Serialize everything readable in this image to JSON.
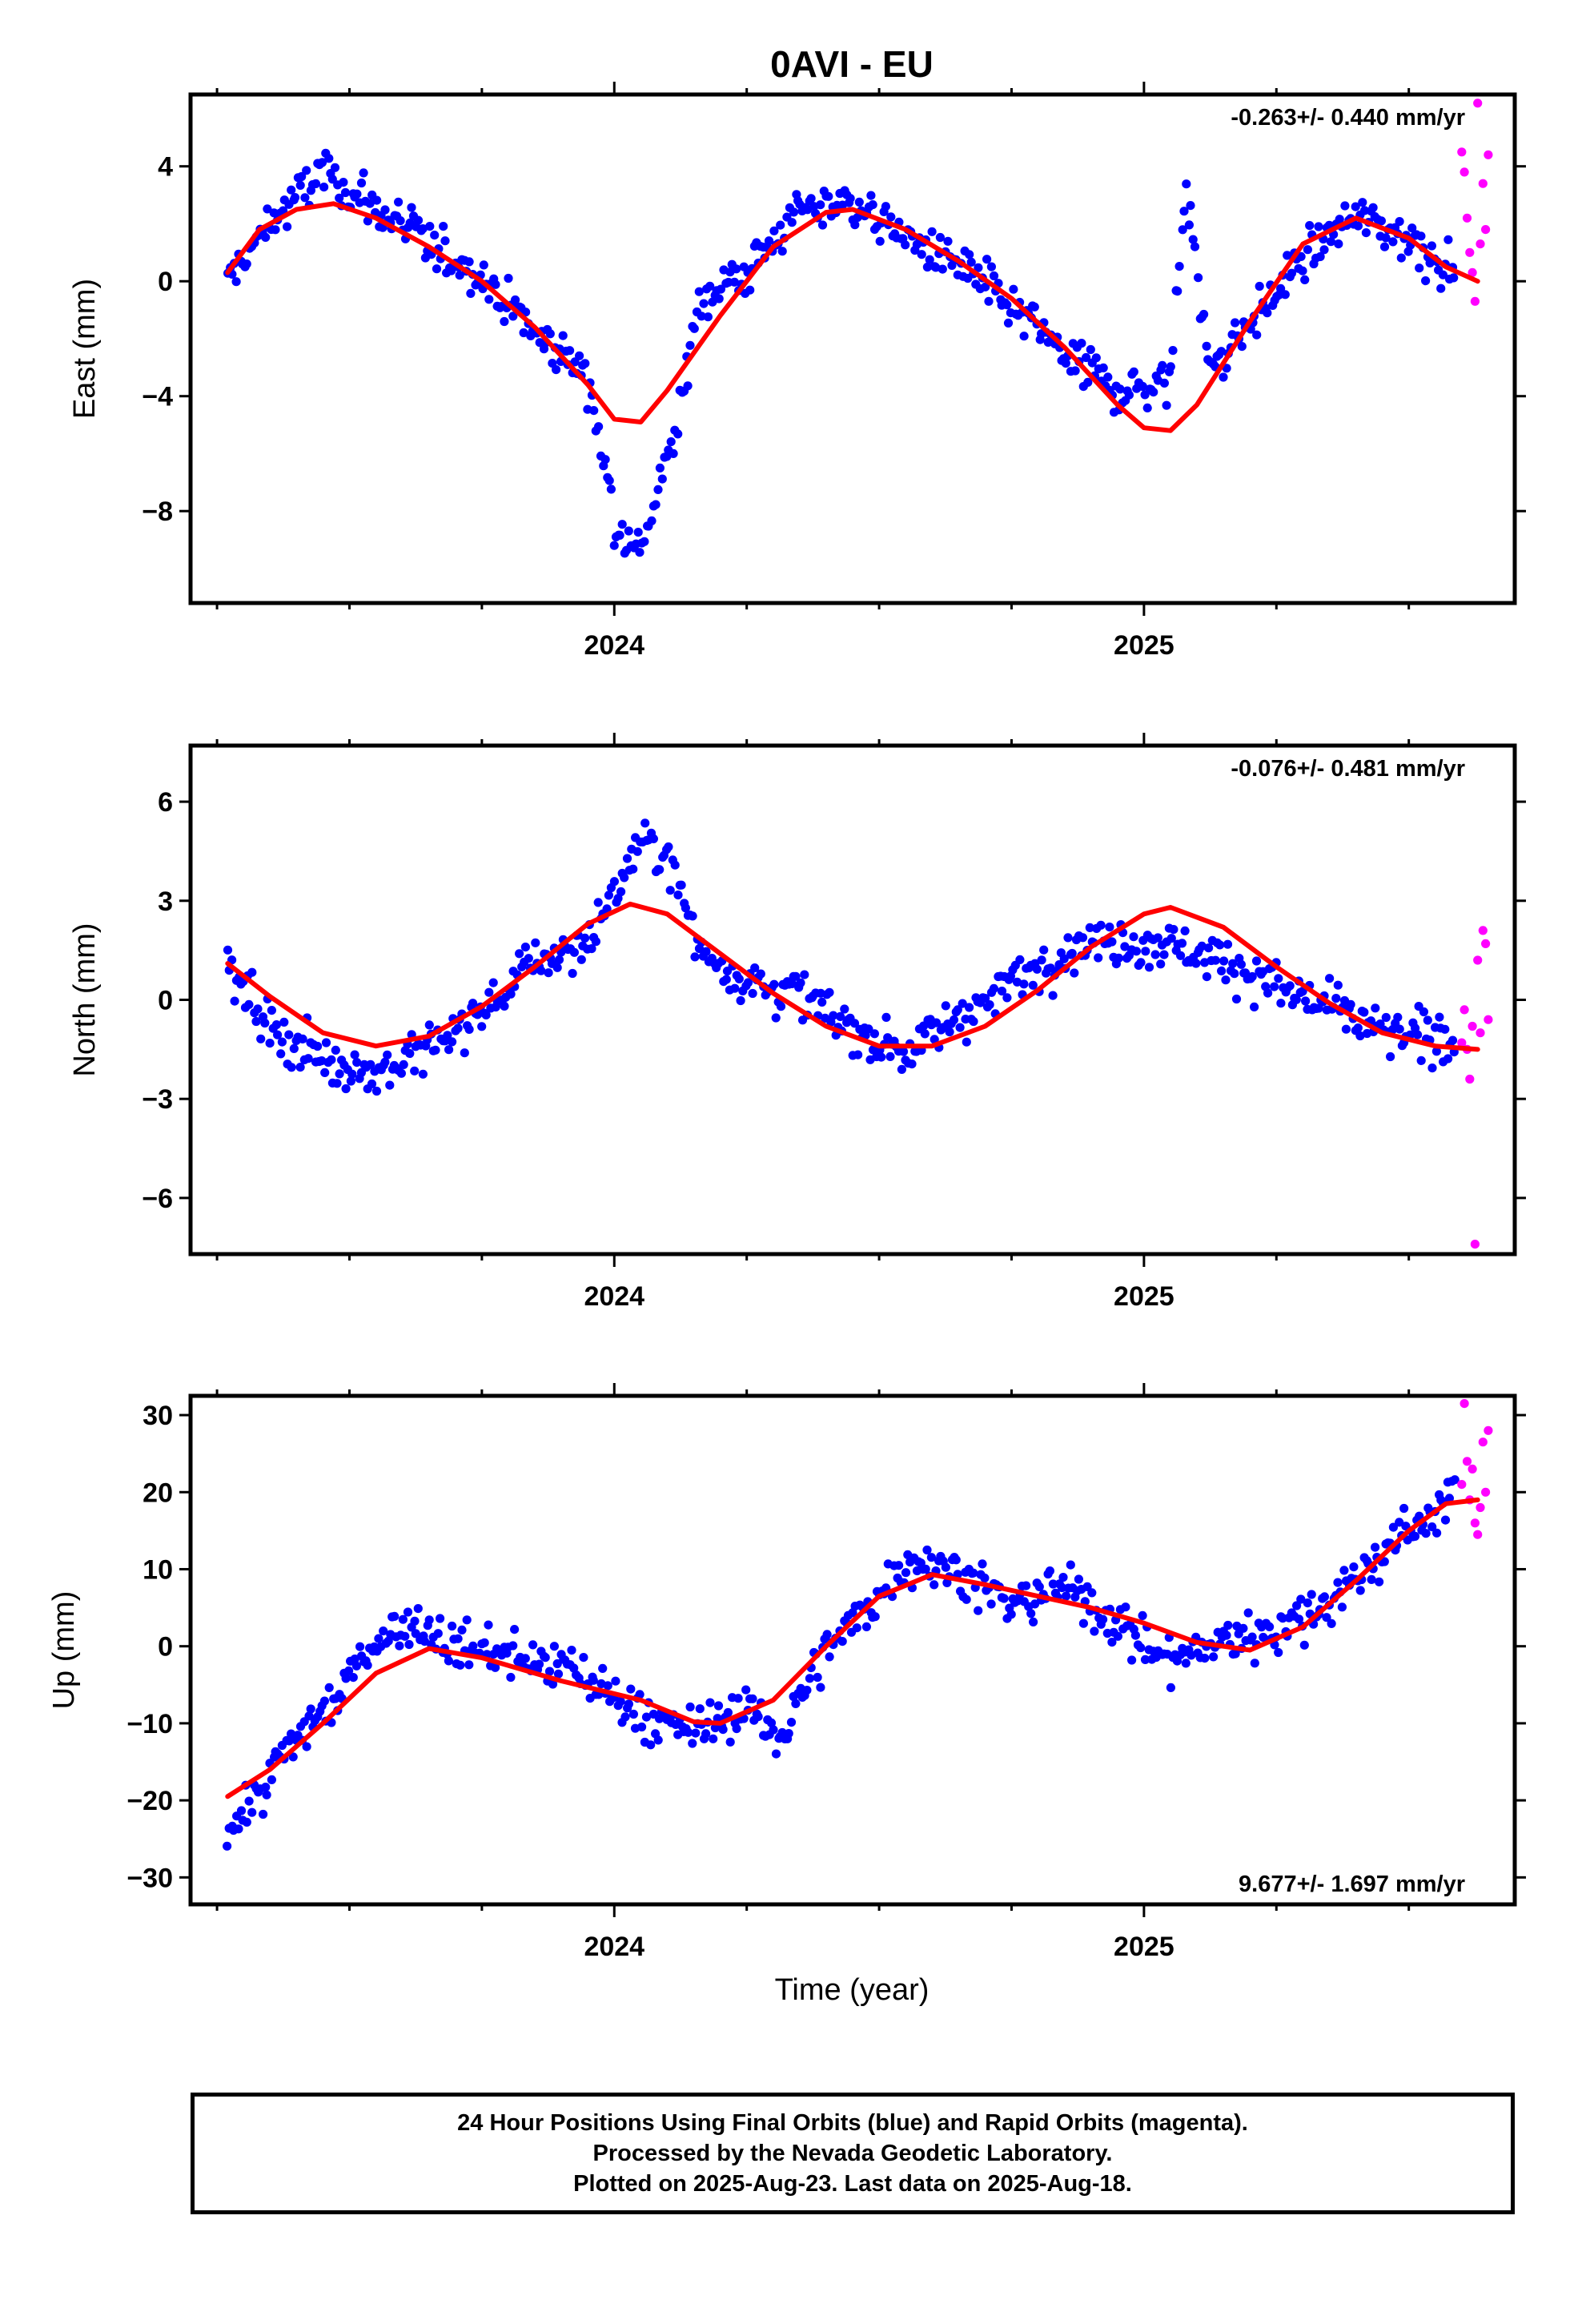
{
  "title": "0AVI - EU",
  "x_axis_label": "Time (year)",
  "footer": {
    "line1": "24 Hour Positions Using Final Orbits (blue) and Rapid Orbits (magenta).",
    "line2": "Processed by the Nevada Geodetic Laboratory.",
    "line3": "Plotted on 2025-Aug-23. Last data on 2025-Aug-18."
  },
  "colors": {
    "final": "#0000ff",
    "rapid": "#ff00ff",
    "fit": "#ff0000",
    "frame": "#000000"
  },
  "chart_data": [
    {
      "type": "scatter",
      "component": "east",
      "ylabel": "East (mm)",
      "rate_text": "-0.263+/- 0.440 mm/yr",
      "xlim": [
        2023.2,
        2025.7
      ],
      "ylim": [
        -11.2,
        6.5
      ],
      "yticks": [
        4,
        0,
        -4,
        -8
      ],
      "ytick_labels": [
        "4",
        "0",
        "−4",
        "−8"
      ],
      "xticks_major": [
        2024,
        2025
      ],
      "xtick_labels": [
        "2024",
        "2025"
      ],
      "xticks_minor": [
        2023.25,
        2023.5,
        2023.75,
        2024.25,
        2024.5,
        2024.75,
        2025.25,
        2025.5
      ],
      "trend": [
        [
          2023.27,
          0.3
        ],
        [
          2023.33,
          1.8
        ],
        [
          2023.4,
          2.5
        ],
        [
          2023.47,
          2.7
        ],
        [
          2023.55,
          2.2
        ],
        [
          2023.65,
          1.2
        ],
        [
          2023.75,
          0.0
        ],
        [
          2023.85,
          -1.6
        ],
        [
          2023.95,
          -3.6
        ],
        [
          2024.0,
          -4.8
        ],
        [
          2024.05,
          -4.9
        ],
        [
          2024.1,
          -3.8
        ],
        [
          2024.2,
          -1.2
        ],
        [
          2024.3,
          1.2
        ],
        [
          2024.4,
          2.4
        ],
        [
          2024.45,
          2.5
        ],
        [
          2024.55,
          1.8
        ],
        [
          2024.65,
          0.7
        ],
        [
          2024.75,
          -0.6
        ],
        [
          2024.85,
          -2.3
        ],
        [
          2024.95,
          -4.3
        ],
        [
          2025.0,
          -5.1
        ],
        [
          2025.05,
          -5.2
        ],
        [
          2025.1,
          -4.3
        ],
        [
          2025.2,
          -1.4
        ],
        [
          2025.3,
          1.3
        ],
        [
          2025.4,
          2.2
        ],
        [
          2025.5,
          1.5
        ],
        [
          2025.57,
          0.5
        ],
        [
          2025.63,
          0.0
        ]
      ],
      "anchors": [
        [
          2023.27,
          0.0
        ],
        [
          2023.35,
          2.0
        ],
        [
          2023.45,
          3.8
        ],
        [
          2023.55,
          2.5
        ],
        [
          2023.65,
          1.3
        ],
        [
          2023.75,
          0.2
        ],
        [
          2023.85,
          -1.8
        ],
        [
          2023.95,
          -3.2
        ],
        [
          2024.0,
          -8.2
        ],
        [
          2024.04,
          -9.6
        ],
        [
          2024.08,
          -7.5
        ],
        [
          2024.12,
          -5.0
        ],
        [
          2024.16,
          -0.6
        ],
        [
          2024.25,
          0.3
        ],
        [
          2024.35,
          2.5
        ],
        [
          2024.45,
          2.8
        ],
        [
          2024.55,
          1.5
        ],
        [
          2024.65,
          0.6
        ],
        [
          2024.75,
          -0.9
        ],
        [
          2024.85,
          -2.5
        ],
        [
          2024.95,
          -3.8
        ],
        [
          2025.05,
          -3.5
        ],
        [
          2025.08,
          3.8
        ],
        [
          2025.12,
          -3.0
        ],
        [
          2025.2,
          -1.5
        ],
        [
          2025.3,
          0.8
        ],
        [
          2025.4,
          2.3
        ],
        [
          2025.5,
          1.5
        ],
        [
          2025.59,
          0.3
        ]
      ],
      "rapid": [
        [
          2025.6,
          4.5
        ],
        [
          2025.605,
          3.8
        ],
        [
          2025.61,
          2.2
        ],
        [
          2025.615,
          1.0
        ],
        [
          2025.62,
          0.3
        ],
        [
          2025.625,
          -0.7
        ],
        [
          2025.63,
          6.2
        ],
        [
          2025.635,
          1.3
        ],
        [
          2025.64,
          3.4
        ],
        [
          2025.645,
          1.8
        ],
        [
          2025.65,
          4.4
        ]
      ]
    },
    {
      "type": "scatter",
      "component": "north",
      "ylabel": "North (mm)",
      "rate_text": "-0.076+/- 0.481 mm/yr",
      "xlim": [
        2023.2,
        2025.7
      ],
      "ylim": [
        -7.7,
        7.7
      ],
      "yticks": [
        6,
        3,
        0,
        -3,
        -6
      ],
      "ytick_labels": [
        "6",
        "3",
        "0",
        "−3",
        "−6"
      ],
      "xticks_major": [
        2024,
        2025
      ],
      "xtick_labels": [
        "2024",
        "2025"
      ],
      "xticks_minor": [
        2023.25,
        2023.5,
        2023.75,
        2024.25,
        2024.5,
        2024.75,
        2025.25,
        2025.5
      ],
      "trend": [
        [
          2023.27,
          1.1
        ],
        [
          2023.35,
          0.1
        ],
        [
          2023.45,
          -1.0
        ],
        [
          2023.55,
          -1.4
        ],
        [
          2023.65,
          -1.1
        ],
        [
          2023.75,
          -0.2
        ],
        [
          2023.85,
          1.0
        ],
        [
          2023.95,
          2.3
        ],
        [
          2024.03,
          2.9
        ],
        [
          2024.1,
          2.6
        ],
        [
          2024.2,
          1.4
        ],
        [
          2024.3,
          0.2
        ],
        [
          2024.4,
          -0.8
        ],
        [
          2024.5,
          -1.4
        ],
        [
          2024.6,
          -1.4
        ],
        [
          2024.7,
          -0.8
        ],
        [
          2024.8,
          0.3
        ],
        [
          2024.9,
          1.6
        ],
        [
          2025.0,
          2.6
        ],
        [
          2025.05,
          2.8
        ],
        [
          2025.15,
          2.2
        ],
        [
          2025.25,
          1.0
        ],
        [
          2025.35,
          -0.1
        ],
        [
          2025.45,
          -1.0
        ],
        [
          2025.55,
          -1.4
        ],
        [
          2025.63,
          -1.5
        ]
      ],
      "anchors": [
        [
          2023.27,
          1.0
        ],
        [
          2023.35,
          -0.8
        ],
        [
          2023.45,
          -1.8
        ],
        [
          2023.55,
          -2.2
        ],
        [
          2023.65,
          -1.5
        ],
        [
          2023.75,
          -0.4
        ],
        [
          2023.85,
          1.2
        ],
        [
          2023.95,
          1.7
        ],
        [
          2024.0,
          3.2
        ],
        [
          2024.05,
          4.8
        ],
        [
          2024.1,
          4.4
        ],
        [
          2024.16,
          1.5
        ],
        [
          2024.25,
          0.6
        ],
        [
          2024.35,
          0.2
        ],
        [
          2024.45,
          -0.9
        ],
        [
          2024.55,
          -1.6
        ],
        [
          2024.65,
          -0.5
        ],
        [
          2024.75,
          0.5
        ],
        [
          2024.85,
          1.5
        ],
        [
          2024.95,
          1.8
        ],
        [
          2025.05,
          1.7
        ],
        [
          2025.15,
          1.2
        ],
        [
          2025.25,
          0.4
        ],
        [
          2025.35,
          -0.2
        ],
        [
          2025.45,
          -1.0
        ],
        [
          2025.59,
          -1.2
        ]
      ],
      "rapid": [
        [
          2025.6,
          -1.3
        ],
        [
          2025.605,
          -0.3
        ],
        [
          2025.61,
          -1.5
        ],
        [
          2025.615,
          -2.4
        ],
        [
          2025.62,
          -0.8
        ],
        [
          2025.625,
          -7.4
        ],
        [
          2025.63,
          1.2
        ],
        [
          2025.635,
          -1.0
        ],
        [
          2025.64,
          2.1
        ],
        [
          2025.645,
          1.7
        ],
        [
          2025.65,
          -0.6
        ]
      ]
    },
    {
      "type": "scatter",
      "component": "up",
      "ylabel": "Up (mm)",
      "rate_text": "9.677+/- 1.697 mm/yr",
      "xlim": [
        2023.2,
        2025.7
      ],
      "ylim": [
        -33.5,
        32.5
      ],
      "yticks": [
        30,
        20,
        10,
        0,
        -10,
        -20,
        -30
      ],
      "ytick_labels": [
        "30",
        "20",
        "10",
        "0",
        "−10",
        "−20",
        "−30"
      ],
      "xticks_major": [
        2024,
        2025
      ],
      "xtick_labels": [
        "2024",
        "2025"
      ],
      "xticks_minor": [
        2023.25,
        2023.5,
        2023.75,
        2024.25,
        2024.5,
        2024.75,
        2025.25,
        2025.5
      ],
      "trend": [
        [
          2023.27,
          -19.5
        ],
        [
          2023.35,
          -16.0
        ],
        [
          2023.45,
          -10.0
        ],
        [
          2023.55,
          -3.5
        ],
        [
          2023.65,
          -0.3
        ],
        [
          2023.75,
          -1.5
        ],
        [
          2023.9,
          -4.5
        ],
        [
          2024.05,
          -7.0
        ],
        [
          2024.15,
          -9.8
        ],
        [
          2024.2,
          -10.0
        ],
        [
          2024.3,
          -7.0
        ],
        [
          2024.4,
          0.0
        ],
        [
          2024.5,
          6.5
        ],
        [
          2024.6,
          9.3
        ],
        [
          2024.7,
          8.0
        ],
        [
          2024.8,
          6.5
        ],
        [
          2024.9,
          5.0
        ],
        [
          2025.0,
          3.0
        ],
        [
          2025.1,
          0.5
        ],
        [
          2025.2,
          -0.5
        ],
        [
          2025.3,
          2.5
        ],
        [
          2025.4,
          8.5
        ],
        [
          2025.5,
          15.0
        ],
        [
          2025.57,
          18.5
        ],
        [
          2025.63,
          19.0
        ]
      ],
      "anchors": [
        [
          2023.27,
          -24.0
        ],
        [
          2023.33,
          -19.0
        ],
        [
          2023.4,
          -12.0
        ],
        [
          2023.48,
          -6.0
        ],
        [
          2023.55,
          1.0
        ],
        [
          2023.62,
          3.0
        ],
        [
          2023.7,
          0.0
        ],
        [
          2023.8,
          -1.0
        ],
        [
          2023.95,
          -4.0
        ],
        [
          2024.05,
          -9.0
        ],
        [
          2024.15,
          -11.0
        ],
        [
          2024.25,
          -8.0
        ],
        [
          2024.32,
          -12.0
        ],
        [
          2024.38,
          -2.0
        ],
        [
          2024.45,
          3.0
        ],
        [
          2024.55,
          11.0
        ],
        [
          2024.65,
          10.0
        ],
        [
          2024.75,
          5.0
        ],
        [
          2024.85,
          8.0
        ],
        [
          2024.95,
          3.0
        ],
        [
          2025.05,
          -2.0
        ],
        [
          2025.15,
          1.0
        ],
        [
          2025.25,
          2.0
        ],
        [
          2025.35,
          6.0
        ],
        [
          2025.45,
          12.0
        ],
        [
          2025.59,
          20.0
        ]
      ],
      "rapid": [
        [
          2025.6,
          21.0
        ],
        [
          2025.605,
          31.5
        ],
        [
          2025.61,
          24.0
        ],
        [
          2025.615,
          19.0
        ],
        [
          2025.62,
          23.0
        ],
        [
          2025.625,
          16.0
        ],
        [
          2025.63,
          14.5
        ],
        [
          2025.635,
          18.0
        ],
        [
          2025.64,
          26.5
        ],
        [
          2025.645,
          20.0
        ],
        [
          2025.65,
          28.0
        ]
      ]
    }
  ]
}
